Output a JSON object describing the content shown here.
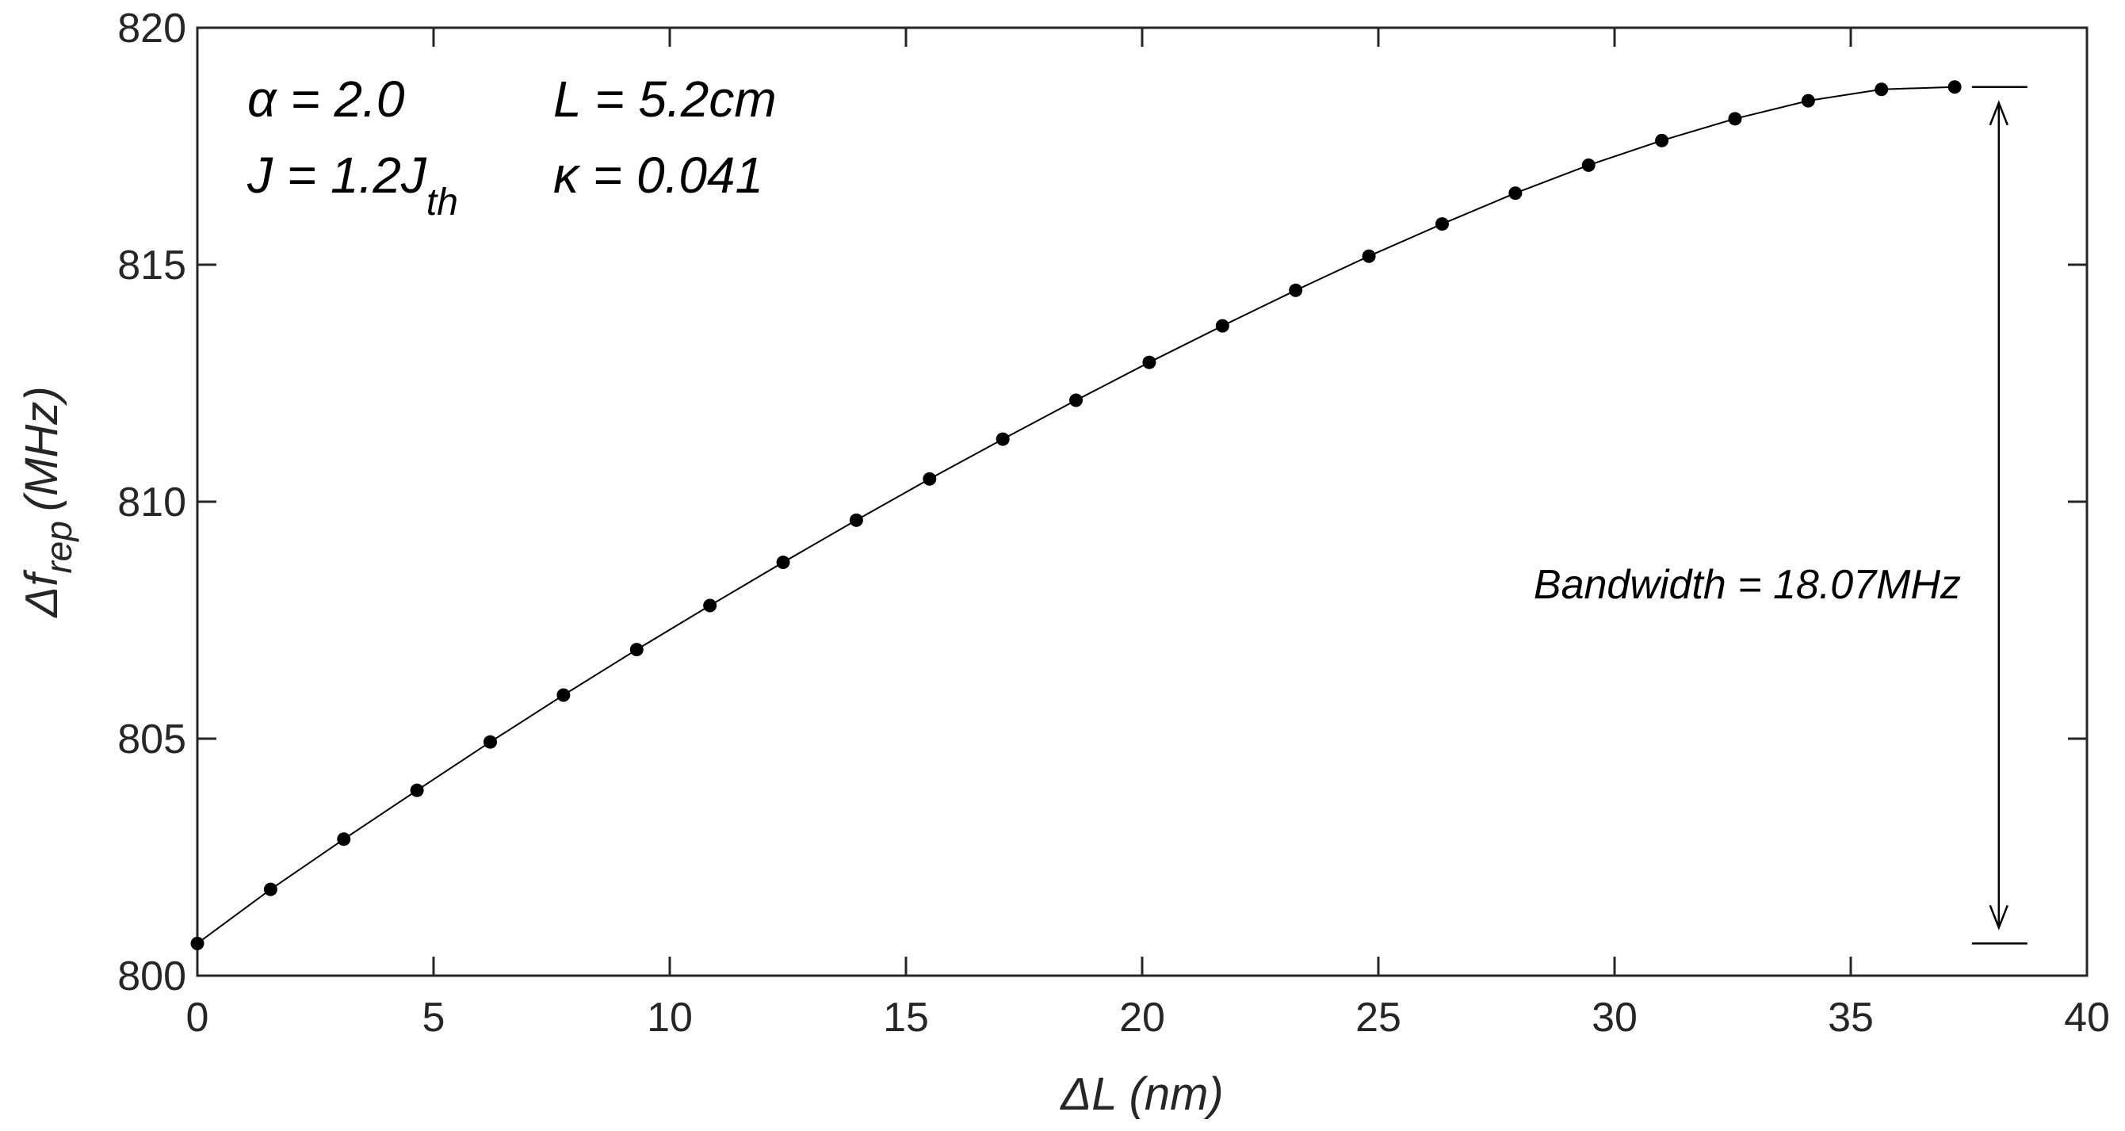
{
  "chart_data": {
    "type": "line",
    "xlabel": "ΔL (nm)",
    "ylabel": {
      "main": "Δf",
      "sub": "rep",
      "unit": "(MHz)"
    },
    "xlim": [
      0,
      40
    ],
    "ylim": [
      800,
      820
    ],
    "xticks": [
      0,
      5,
      10,
      15,
      20,
      25,
      30,
      35,
      40
    ],
    "yticks": [
      800,
      805,
      810,
      815,
      820
    ],
    "grid": false,
    "series": [
      {
        "marker": "filled-circle",
        "line": "solid",
        "color": "#000000",
        "x": [
          0,
          1.55,
          3.1,
          4.65,
          6.2,
          7.75,
          9.3,
          10.85,
          12.4,
          13.95,
          15.5,
          17.05,
          18.6,
          20.15,
          21.7,
          23.25,
          24.8,
          26.35,
          27.9,
          29.45,
          31.0,
          32.55,
          34.1,
          35.65,
          37.2
        ],
        "y": [
          800.68,
          801.82,
          802.88,
          803.91,
          804.93,
          805.92,
          806.88,
          807.81,
          808.72,
          809.61,
          810.48,
          811.32,
          812.14,
          812.94,
          813.71,
          814.46,
          815.18,
          815.86,
          816.51,
          817.1,
          817.62,
          818.08,
          818.46,
          818.7,
          818.75
        ]
      }
    ],
    "annotations": [
      {
        "id": "alpha",
        "text": "α = 2.0"
      },
      {
        "id": "length",
        "text": "L = 5.2cm"
      },
      {
        "id": "current",
        "text": "J = 1.2J",
        "sub": "th"
      },
      {
        "id": "kappa",
        "text": "κ = 0.041"
      }
    ],
    "bandwidth": {
      "label": "Bandwidth = 18.07MHz",
      "y_low": 800.68,
      "y_high": 818.75,
      "x": 38
    }
  }
}
